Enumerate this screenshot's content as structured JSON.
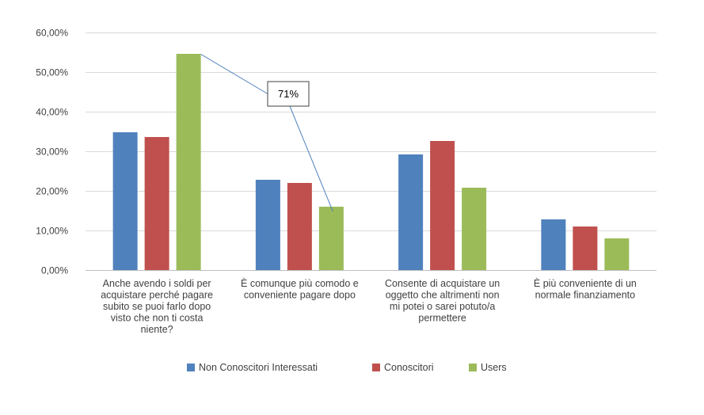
{
  "chart_data": {
    "type": "bar",
    "categories": [
      [
        "Anche avendo i soldi per",
        "acquistare perché pagare",
        "subito se puoi farlo dopo",
        "visto che non ti costa",
        "niente?"
      ],
      [
        "È comunque più comodo e",
        "conveniente pagare dopo"
      ],
      [
        "Consente di acquistare un",
        "oggetto che altrimenti non",
        "mi potei o sarei potuto/a",
        "permettere"
      ],
      [
        "È più conveniente di un",
        "normale finanziamento"
      ]
    ],
    "series": [
      {
        "name": "Non Conoscitori Interessati",
        "color": "#4f81bd",
        "values": [
          34.8,
          22.8,
          29.2,
          12.8
        ]
      },
      {
        "name": "Conoscitori",
        "color": "#c0504d",
        "values": [
          33.6,
          22.0,
          32.6,
          11.0
        ]
      },
      {
        "name": "Users",
        "color": "#9bbb59",
        "values": [
          54.6,
          16.0,
          20.8,
          8.0
        ]
      }
    ],
    "ylim": [
      0,
      60
    ],
    "yticks": [
      "0,00%",
      "10,00%",
      "20,00%",
      "30,00%",
      "40,00%",
      "50,00%",
      "60,00%"
    ],
    "grid": true,
    "legend_position": "bottom",
    "annotation": {
      "text": "71%",
      "from_series": 2,
      "from_category": 0,
      "to_series": 2,
      "to_category": 1
    }
  }
}
